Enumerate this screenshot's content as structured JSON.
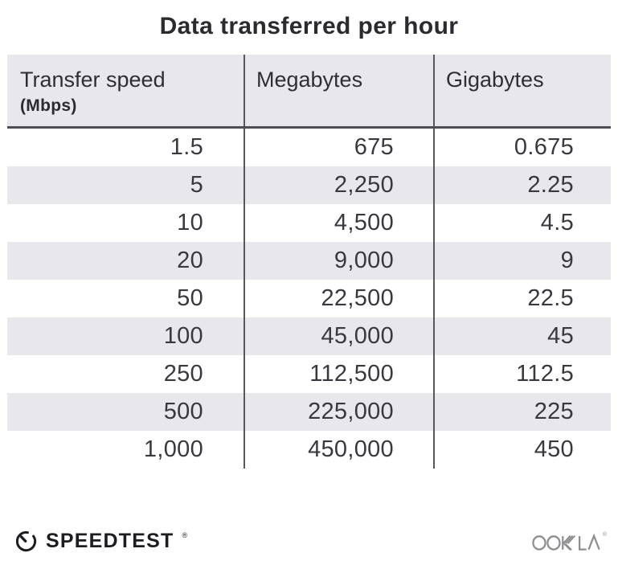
{
  "title": "Data transferred per hour",
  "colors": {
    "row_alt": "#e8e7ec",
    "header_bg": "#e8e7ec",
    "divider": "#59575c",
    "header_rule": "#504e53",
    "text": "#3a383e",
    "title_text": "#2b2a2f",
    "ookla_gray": "#8e8d91",
    "speedtest_black": "#1d1c20"
  },
  "table": {
    "columns": [
      {
        "label": "Transfer speed",
        "unit": "(Mbps)"
      },
      {
        "label": "Megabytes"
      },
      {
        "label": "Gigabytes"
      }
    ],
    "rows": [
      [
        "1.5",
        "675",
        "0.675"
      ],
      [
        "5",
        "2,250",
        "2.25"
      ],
      [
        "10",
        "4,500",
        "4.5"
      ],
      [
        "20",
        "9,000",
        "9"
      ],
      [
        "50",
        "22,500",
        "22.5"
      ],
      [
        "100",
        "45,000",
        "45"
      ],
      [
        "250",
        "112,500",
        "112.5"
      ],
      [
        "500",
        "225,000",
        "225"
      ],
      [
        "1,000",
        "450,000",
        "450"
      ]
    ]
  },
  "footer": {
    "brand": "SPEEDTEST",
    "brand_mark": "®",
    "company": "OOKLA",
    "company_mark": "®",
    "icons": [
      "speedtest-gauge-icon",
      "ookla-logo"
    ]
  },
  "chart_data": {
    "type": "table",
    "title": "Data transferred per hour",
    "columns": [
      "Transfer speed (Mbps)",
      "Megabytes",
      "Gigabytes"
    ],
    "rows": [
      [
        1.5,
        675,
        0.675
      ],
      [
        5,
        2250,
        2.25
      ],
      [
        10,
        4500,
        4.5
      ],
      [
        20,
        9000,
        9
      ],
      [
        50,
        22500,
        22.5
      ],
      [
        100,
        45000,
        45
      ],
      [
        250,
        112500,
        112.5
      ],
      [
        500,
        225000,
        225
      ],
      [
        1000,
        450000,
        450
      ]
    ],
    "layout": {
      "striped_rows": true,
      "column_dividers": true,
      "value_alignment": "right"
    }
  }
}
